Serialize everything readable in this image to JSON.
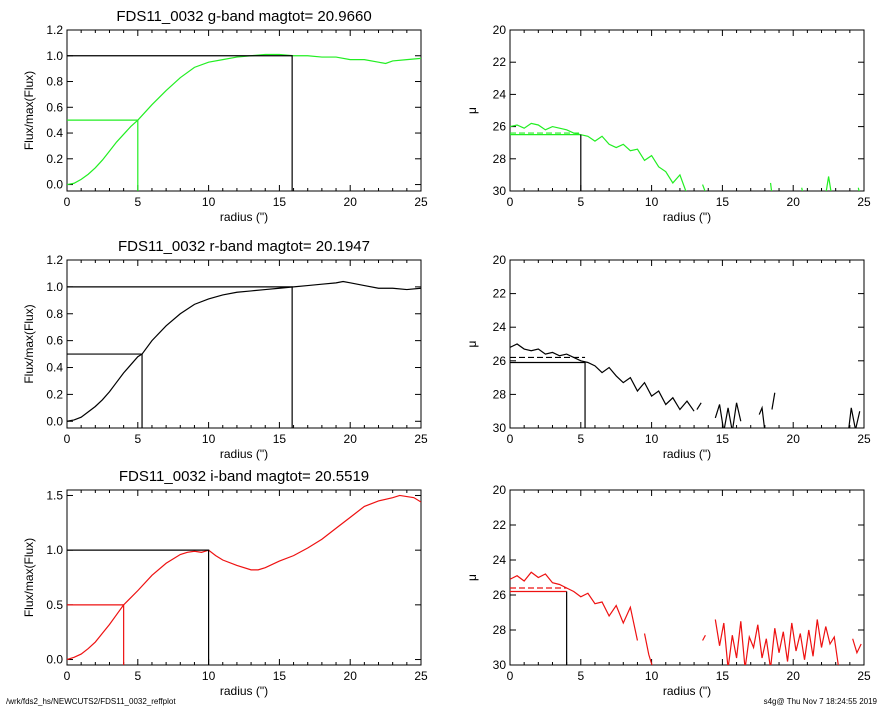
{
  "footer": {
    "left": "/wrk/fds2_hs/NEWCUTS2/FDS11_0032_reffplot",
    "right": "s4g@  Thu Nov  7 18:24:55 2019"
  },
  "colors": {
    "g": "#22ee22",
    "r": "#000000",
    "i": "#ee1111",
    "axis": "#000000"
  },
  "chart_data": [
    {
      "type": "line",
      "band": "g",
      "color": "#22ee22",
      "title": "FDS11_0032 g-band  magtot=      20.9660",
      "xlabel": "radius (\")",
      "ylabel": "Flux/max(Flux)",
      "xlim": [
        0,
        25
      ],
      "ylim": [
        -0.05,
        1.2
      ],
      "xticks": [
        0,
        5,
        10,
        15,
        20,
        25
      ],
      "yticks": [
        0.0,
        0.2,
        0.4,
        0.6,
        0.8,
        1.0,
        1.2
      ],
      "ytick_labels": [
        "0.0",
        "0.2",
        "0.4",
        "0.6",
        "0.8",
        "1.0",
        "1.2"
      ],
      "half_light": {
        "r": 5.0,
        "f": 0.5
      },
      "total": {
        "r": 15.9,
        "f": 1.0
      },
      "x": [
        0,
        0.5,
        1,
        1.5,
        2,
        2.5,
        3,
        3.5,
        4,
        4.5,
        5,
        6,
        7,
        8,
        9,
        10,
        11,
        12,
        13,
        14,
        15,
        16,
        17,
        18,
        19,
        20,
        21,
        22,
        22.5,
        23,
        24,
        25
      ],
      "y": [
        0,
        0.01,
        0.04,
        0.08,
        0.13,
        0.19,
        0.26,
        0.33,
        0.39,
        0.45,
        0.5,
        0.62,
        0.73,
        0.83,
        0.91,
        0.95,
        0.97,
        0.99,
        1.0,
        1.01,
        1.01,
        1.0,
        1.0,
        0.99,
        0.99,
        0.97,
        0.97,
        0.95,
        0.94,
        0.96,
        0.97,
        0.98
      ]
    },
    {
      "type": "line",
      "band": "g",
      "color": "#22ee22",
      "title": "",
      "xlabel": "radius (\")",
      "ylabel": "μ",
      "xlim": [
        0,
        25
      ],
      "ylim": [
        20,
        30
      ],
      "y_inverted": true,
      "xticks": [
        0,
        5,
        10,
        15,
        20,
        25
      ],
      "yticks": [
        20,
        22,
        24,
        26,
        28,
        30
      ],
      "half_light": {
        "r": 5.0,
        "mu": 26.5
      },
      "mean_mu_dashed": 26.4,
      "segments": [
        {
          "x": [
            0,
            0.5,
            1,
            1.5,
            2,
            2.5,
            3,
            3.5,
            4,
            4.5,
            5,
            5.5,
            6,
            6.5,
            7,
            7.5,
            8,
            8.5,
            9,
            9.5,
            10,
            10.5,
            11,
            11.5,
            12,
            12.5,
            13
          ],
          "y": [
            26.0,
            25.9,
            26.1,
            25.8,
            25.9,
            26.2,
            26.0,
            26.1,
            26.2,
            26.4,
            26.5,
            26.6,
            26.9,
            26.6,
            27.1,
            27.3,
            27.1,
            27.5,
            27.4,
            28.1,
            27.8,
            28.5,
            28.8,
            29.5,
            29.0,
            30.2,
            30.5
          ]
        },
        {
          "x": [
            13.6,
            13.9
          ],
          "y": [
            29.6,
            30.3
          ]
        },
        {
          "x": [
            18.4,
            18.5
          ],
          "y": [
            29.5,
            30.2
          ]
        },
        {
          "x": [
            20.6,
            20.7
          ],
          "y": [
            29.8,
            30.2
          ]
        },
        {
          "x": [
            22.3,
            22.5,
            22.7
          ],
          "y": [
            30.2,
            29.1,
            30.2
          ]
        },
        {
          "x": [
            24.6,
            24.7
          ],
          "y": [
            29.8,
            30.2
          ]
        }
      ]
    },
    {
      "type": "line",
      "band": "r",
      "color": "#000000",
      "title": "FDS11_0032 r-band  magtot=      20.1947",
      "xlabel": "radius (\")",
      "ylabel": "Flux/max(Flux)",
      "xlim": [
        0,
        25
      ],
      "ylim": [
        -0.05,
        1.2
      ],
      "xticks": [
        0,
        5,
        10,
        15,
        20,
        25
      ],
      "yticks": [
        0.0,
        0.2,
        0.4,
        0.6,
        0.8,
        1.0,
        1.2
      ],
      "ytick_labels": [
        "0.0",
        "0.2",
        "0.4",
        "0.6",
        "0.8",
        "1.0",
        "1.2"
      ],
      "half_light": {
        "r": 5.3,
        "f": 0.5
      },
      "total": {
        "r": 15.9,
        "f": 1.0
      },
      "x": [
        0,
        0.5,
        1,
        1.5,
        2,
        2.5,
        3,
        3.5,
        4,
        4.5,
        5,
        5.3,
        6,
        7,
        8,
        9,
        10,
        11,
        12,
        13,
        14,
        15,
        16,
        17,
        18,
        19,
        19.5,
        20,
        21,
        22,
        23,
        24,
        25
      ],
      "y": [
        0,
        0.01,
        0.03,
        0.07,
        0.11,
        0.16,
        0.22,
        0.29,
        0.36,
        0.42,
        0.48,
        0.5,
        0.6,
        0.71,
        0.8,
        0.87,
        0.91,
        0.94,
        0.96,
        0.97,
        0.98,
        0.99,
        1.0,
        1.01,
        1.02,
        1.03,
        1.04,
        1.03,
        1.01,
        0.99,
        0.99,
        0.98,
        0.99
      ]
    },
    {
      "type": "line",
      "band": "r",
      "color": "#000000",
      "title": "",
      "xlabel": "radius (\")",
      "ylabel": "μ",
      "xlim": [
        0,
        25
      ],
      "ylim": [
        20,
        30
      ],
      "y_inverted": true,
      "xticks": [
        0,
        5,
        10,
        15,
        20,
        25
      ],
      "yticks": [
        20,
        22,
        24,
        26,
        28,
        30
      ],
      "half_light": {
        "r": 5.3,
        "mu": 26.1
      },
      "mean_mu_dashed": 25.8,
      "segments": [
        {
          "x": [
            0,
            0.5,
            1,
            1.5,
            2,
            2.5,
            3,
            3.5,
            4,
            4.5,
            5,
            5.5,
            6,
            6.5,
            7,
            7.5,
            8,
            8.5,
            9,
            9.5,
            10,
            10.5,
            11,
            11.5,
            12,
            12.5,
            13
          ],
          "y": [
            25.2,
            25.0,
            25.3,
            25.4,
            25.3,
            25.6,
            25.5,
            25.7,
            25.6,
            25.8,
            26.0,
            26.1,
            26.3,
            26.7,
            26.4,
            26.9,
            27.3,
            27.0,
            27.8,
            27.3,
            28.1,
            27.8,
            28.6,
            28.2,
            28.9,
            28.4,
            29.0
          ]
        },
        {
          "x": [
            13.2,
            13.5
          ],
          "y": [
            28.9,
            28.5
          ]
        },
        {
          "x": [
            14.5,
            14.8,
            15.1,
            15.4,
            15.7,
            16.0,
            16.3
          ],
          "y": [
            29.4,
            28.6,
            30.2,
            28.8,
            30.2,
            28.5,
            29.6
          ]
        },
        {
          "x": [
            17.6,
            17.8,
            18.0
          ],
          "y": [
            29.2,
            28.8,
            30.2
          ]
        },
        {
          "x": [
            18.5,
            18.7
          ],
          "y": [
            28.9,
            27.9
          ]
        },
        {
          "x": [
            23.9,
            24.1,
            24.4,
            24.7
          ],
          "y": [
            30.2,
            28.8,
            30.1,
            29.0
          ]
        }
      ]
    },
    {
      "type": "line",
      "band": "i",
      "color": "#ee1111",
      "title": "FDS11_0032 i-band  magtot=      20.5519",
      "xlabel": "radius (\")",
      "ylabel": "Flux/max(Flux)",
      "xlim": [
        0,
        25
      ],
      "ylim": [
        -0.05,
        1.55
      ],
      "xticks": [
        0,
        5,
        10,
        15,
        20,
        25
      ],
      "yticks": [
        0.0,
        0.5,
        1.0,
        1.5
      ],
      "ytick_labels": [
        "0.0",
        "0.5",
        "1.0",
        "1.5"
      ],
      "half_light": {
        "r": 4.0,
        "f": 0.5
      },
      "total": {
        "r": 10.0,
        "f": 1.0
      },
      "x": [
        0,
        0.5,
        1,
        1.5,
        2,
        2.5,
        3,
        3.5,
        4,
        5,
        6,
        7,
        8,
        8.5,
        9,
        9.5,
        10,
        10.5,
        11,
        12,
        13,
        13.5,
        14,
        15,
        16,
        17,
        18,
        19,
        20,
        21,
        22,
        23,
        23.5,
        24,
        24.5,
        25
      ],
      "y": [
        0,
        0.02,
        0.05,
        0.1,
        0.16,
        0.24,
        0.32,
        0.41,
        0.5,
        0.63,
        0.77,
        0.88,
        0.96,
        0.98,
        0.99,
        0.98,
        1.0,
        0.95,
        0.91,
        0.86,
        0.82,
        0.82,
        0.84,
        0.9,
        0.95,
        1.02,
        1.1,
        1.2,
        1.3,
        1.4,
        1.45,
        1.48,
        1.5,
        1.49,
        1.48,
        1.44
      ]
    },
    {
      "type": "line",
      "band": "i",
      "color": "#ee1111",
      "title": "",
      "xlabel": "radius (\")",
      "ylabel": "μ",
      "xlim": [
        0,
        25
      ],
      "ylim": [
        20,
        30
      ],
      "y_inverted": true,
      "xticks": [
        0,
        5,
        10,
        15,
        20,
        25
      ],
      "yticks": [
        20,
        22,
        24,
        26,
        28,
        30
      ],
      "half_light": {
        "r": 4.0,
        "mu": 25.8
      },
      "mean_mu_dashed": 25.6,
      "segments": [
        {
          "x": [
            0,
            0.5,
            1,
            1.5,
            2,
            2.5,
            3,
            3.5,
            4,
            4.5,
            5,
            5.5,
            6,
            6.5,
            7,
            7.5,
            8,
            8.5,
            9
          ],
          "y": [
            25.1,
            24.9,
            25.2,
            24.7,
            25.0,
            24.8,
            25.3,
            25.4,
            25.6,
            25.8,
            26.1,
            25.9,
            26.5,
            26.4,
            27.2,
            26.6,
            27.6,
            26.7,
            28.6
          ]
        },
        {
          "x": [
            9.5,
            9.8,
            10.1
          ],
          "y": [
            28.2,
            29.4,
            30.2
          ]
        },
        {
          "x": [
            13.6,
            13.8
          ],
          "y": [
            28.6,
            28.3
          ]
        },
        {
          "x": [
            14.5,
            14.8,
            15.1,
            15.4,
            15.7,
            16.0,
            16.3,
            16.6,
            16.9,
            17.2,
            17.5,
            17.8,
            18.1,
            18.4,
            18.7,
            19.0,
            19.3,
            19.6,
            19.9,
            20.2,
            20.5,
            20.8,
            21.1,
            21.4,
            21.7,
            22.0,
            22.3,
            22.6,
            22.9,
            23.2
          ],
          "y": [
            27.4,
            28.9,
            27.6,
            30.2,
            28.3,
            29.6,
            27.5,
            30.2,
            28.4,
            29.0,
            27.7,
            29.6,
            28.5,
            30.2,
            27.9,
            29.3,
            28.1,
            29.8,
            27.6,
            29.2,
            28.2,
            29.7,
            28.0,
            29.5,
            27.4,
            29.0,
            27.8,
            28.8,
            28.4,
            30.1
          ]
        },
        {
          "x": [
            24.2,
            24.5,
            24.8
          ],
          "y": [
            28.5,
            29.3,
            28.8
          ]
        }
      ]
    }
  ]
}
